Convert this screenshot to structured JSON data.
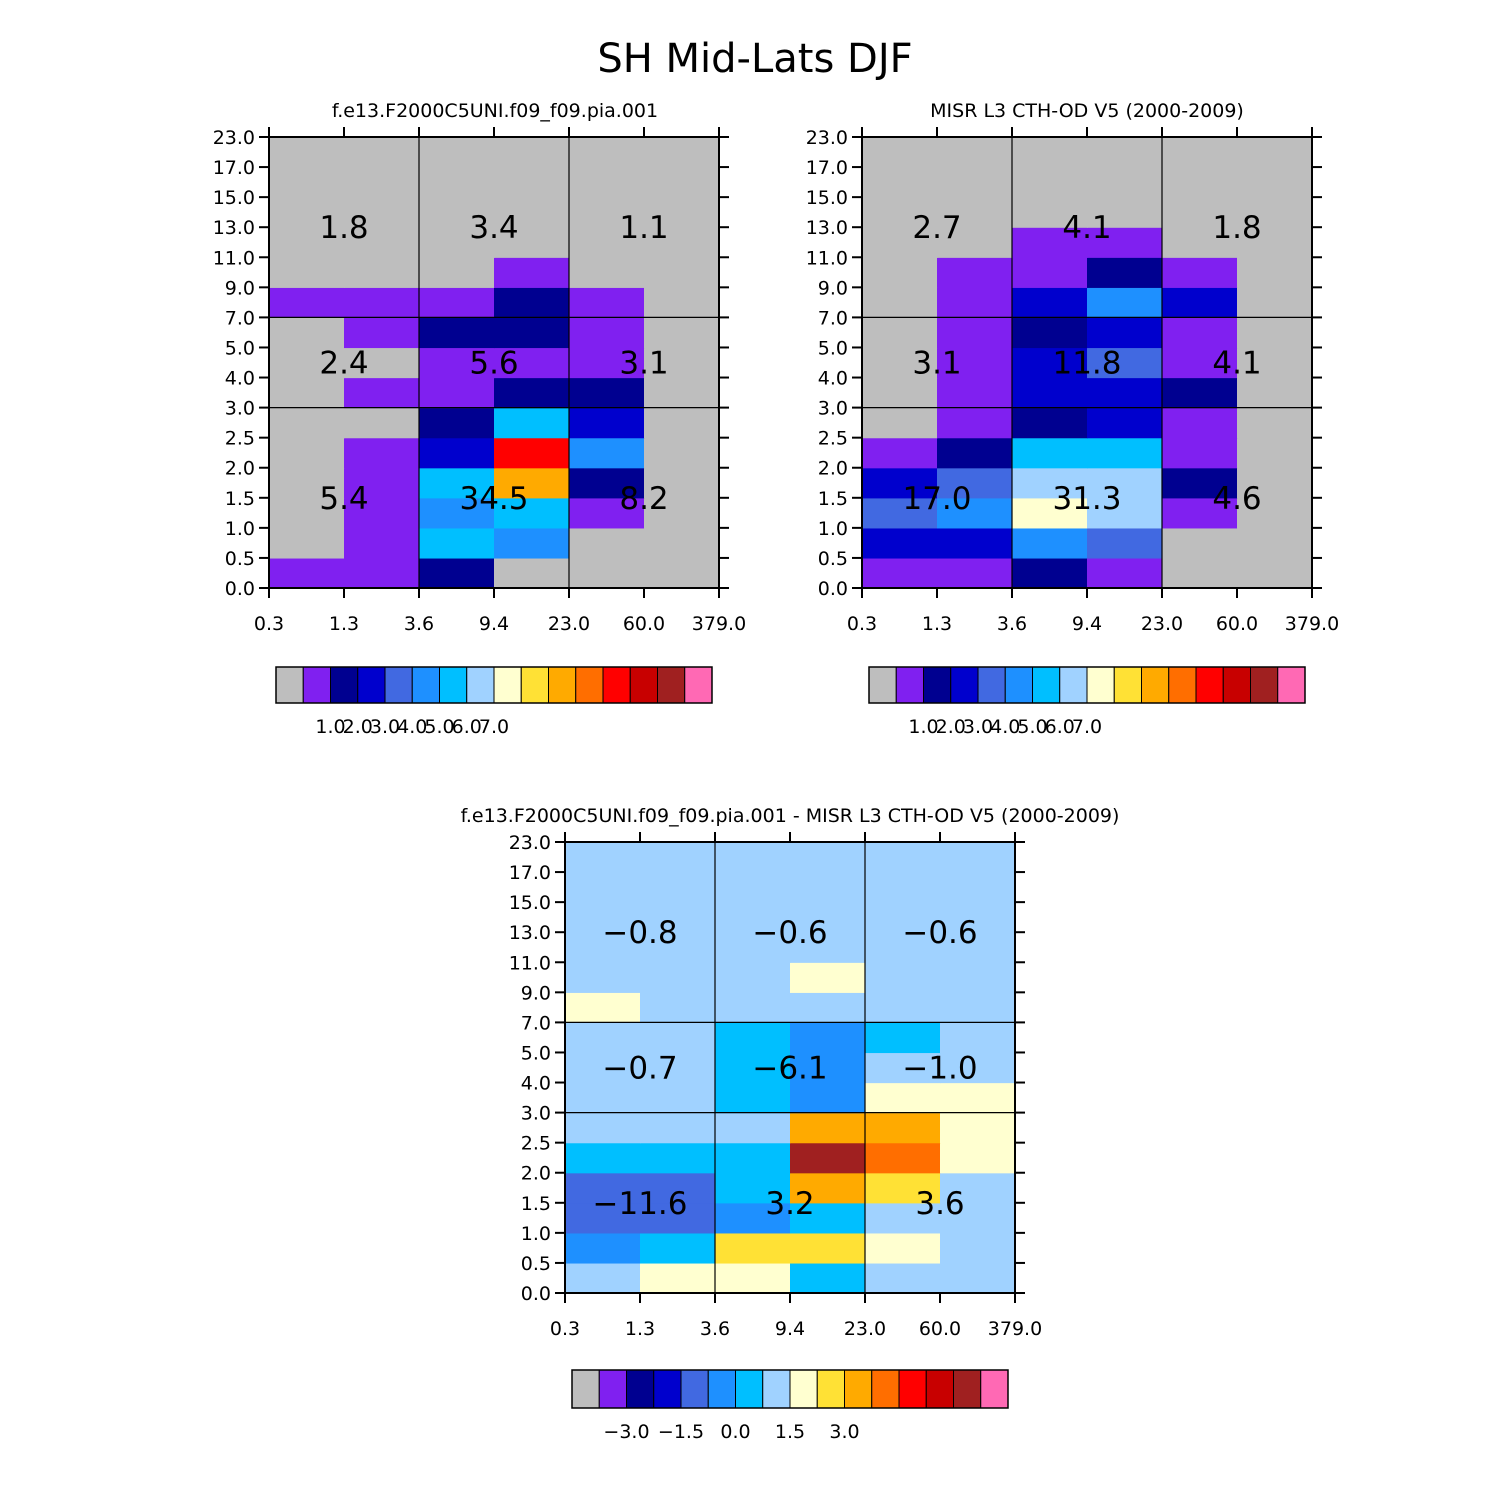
{
  "figure": {
    "title": "SH Mid-Lats DJF"
  },
  "palette": {
    "model": [
      "#bebebe",
      "#8020f0",
      "#000090",
      "#0000cd",
      "#4169e1",
      "#1e90ff",
      "#00bfff",
      "#a0d2ff",
      "#ffffd0",
      "#ffe135",
      "#ffaa00",
      "#ff6e00",
      "#ff0000",
      "#c80000",
      "#a02020",
      "#ff69b4"
    ],
    "diff": [
      "#bebebe",
      "#8020f0",
      "#000090",
      "#0000cd",
      "#4169e1",
      "#1e90ff",
      "#00bfff",
      "#a0d2ff",
      "#ffffd0",
      "#ffe135",
      "#ffaa00",
      "#ff6e00",
      "#ff0000",
      "#c80000",
      "#a02020",
      "#ff69b4"
    ]
  },
  "chart_data": [
    {
      "id": "model",
      "type": "heatmap",
      "title": "f.e13.F2000C5UNI.f09_f09.pia.001",
      "x_ticks": [
        "0.3",
        "1.3",
        "3.6",
        "9.4",
        "23.0",
        "60.0",
        "379.0"
      ],
      "y_ticks": [
        "0.0",
        "0.5",
        "1.0",
        "1.5",
        "2.0",
        "2.5",
        "3.0",
        "4.0",
        "5.0",
        "7.0",
        "9.0",
        "11.0",
        "13.0",
        "15.0",
        "17.0",
        "23.0"
      ],
      "note": "grid rows listed from bottom (0.0-0.5 km) to top (17-23 km); values are colour-bin indices into palette.model",
      "grid": [
        [
          1,
          1,
          2,
          0,
          0,
          0
        ],
        [
          0,
          1,
          6,
          5,
          0,
          0
        ],
        [
          0,
          1,
          5,
          6,
          1,
          0
        ],
        [
          0,
          1,
          6,
          10,
          2,
          0
        ],
        [
          0,
          1,
          3,
          12,
          5,
          0
        ],
        [
          0,
          0,
          2,
          6,
          3,
          0
        ],
        [
          0,
          1,
          1,
          2,
          2,
          0
        ],
        [
          0,
          0,
          1,
          1,
          1,
          0
        ],
        [
          0,
          1,
          2,
          2,
          1,
          0
        ],
        [
          1,
          1,
          1,
          2,
          1,
          0
        ],
        [
          0,
          0,
          0,
          1,
          0,
          0
        ],
        [
          0,
          0,
          0,
          0,
          0,
          0
        ],
        [
          0,
          0,
          0,
          0,
          0,
          0
        ],
        [
          0,
          0,
          0,
          0,
          0,
          0
        ],
        [
          0,
          0,
          0,
          0,
          0,
          0
        ]
      ],
      "annotations": [
        {
          "label": "1.8",
          "col": 0,
          "row": 2
        },
        {
          "label": "3.4",
          "col": 1,
          "row": 2
        },
        {
          "label": "1.1",
          "col": 2,
          "row": 2
        },
        {
          "label": "2.4",
          "col": 0,
          "row": 1
        },
        {
          "label": "5.6",
          "col": 1,
          "row": 1
        },
        {
          "label": "3.1",
          "col": 2,
          "row": 1
        },
        {
          "label": "5.4",
          "col": 0,
          "row": 0
        },
        {
          "label": "34.5",
          "col": 1,
          "row": 0
        },
        {
          "label": "8.2",
          "col": 2,
          "row": 0
        }
      ],
      "colorbar": {
        "labels": [
          "1.0",
          "2.0",
          "3.0",
          "4.0",
          "5.0",
          "6.0",
          "7.0"
        ]
      }
    },
    {
      "id": "obs",
      "type": "heatmap",
      "title": "MISR L3 CTH-OD V5 (2000-2009)",
      "x_ticks": [
        "0.3",
        "1.3",
        "3.6",
        "9.4",
        "23.0",
        "60.0",
        "379.0"
      ],
      "y_ticks": [
        "0.0",
        "0.5",
        "1.0",
        "1.5",
        "2.0",
        "2.5",
        "3.0",
        "4.0",
        "5.0",
        "7.0",
        "9.0",
        "11.0",
        "13.0",
        "15.0",
        "17.0",
        "23.0"
      ],
      "note": "grid rows listed from bottom to top; values are colour-bin indices into palette.model",
      "grid": [
        [
          1,
          1,
          2,
          1,
          0,
          0
        ],
        [
          3,
          3,
          5,
          4,
          0,
          0
        ],
        [
          4,
          5,
          8,
          7,
          1,
          0
        ],
        [
          3,
          4,
          7,
          7,
          2,
          0
        ],
        [
          1,
          2,
          6,
          6,
          1,
          0
        ],
        [
          0,
          1,
          2,
          3,
          1,
          0
        ],
        [
          0,
          1,
          3,
          3,
          2,
          0
        ],
        [
          0,
          1,
          3,
          4,
          1,
          0
        ],
        [
          0,
          1,
          2,
          3,
          1,
          0
        ],
        [
          0,
          1,
          3,
          5,
          3,
          0
        ],
        [
          0,
          1,
          1,
          2,
          1,
          0
        ],
        [
          0,
          0,
          1,
          1,
          0,
          0
        ],
        [
          0,
          0,
          0,
          0,
          0,
          0
        ],
        [
          0,
          0,
          0,
          0,
          0,
          0
        ],
        [
          0,
          0,
          0,
          0,
          0,
          0
        ]
      ],
      "annotations": [
        {
          "label": "2.7",
          "col": 0,
          "row": 2
        },
        {
          "label": "4.1",
          "col": 1,
          "row": 2
        },
        {
          "label": "1.8",
          "col": 2,
          "row": 2
        },
        {
          "label": "3.1",
          "col": 0,
          "row": 1
        },
        {
          "label": "11.8",
          "col": 1,
          "row": 1
        },
        {
          "label": "4.1",
          "col": 2,
          "row": 1
        },
        {
          "label": "17.0",
          "col": 0,
          "row": 0
        },
        {
          "label": "31.3",
          "col": 1,
          "row": 0
        },
        {
          "label": "4.6",
          "col": 2,
          "row": 0
        }
      ],
      "colorbar": {
        "labels": [
          "1.0",
          "2.0",
          "3.0",
          "4.0",
          "5.0",
          "6.0",
          "7.0"
        ]
      }
    },
    {
      "id": "diff",
      "type": "heatmap",
      "title": "f.e13.F2000C5UNI.f09_f09.pia.001 - MISR L3 CTH-OD V5 (2000-2009)",
      "x_ticks": [
        "0.3",
        "1.3",
        "3.6",
        "9.4",
        "23.0",
        "60.0",
        "379.0"
      ],
      "y_ticks": [
        "0.0",
        "0.5",
        "1.0",
        "1.5",
        "2.0",
        "2.5",
        "3.0",
        "4.0",
        "5.0",
        "7.0",
        "9.0",
        "11.0",
        "13.0",
        "15.0",
        "17.0",
        "23.0"
      ],
      "note": "grid rows listed from bottom to top; values are colour-bin indices into palette.diff",
      "grid": [
        [
          7,
          8,
          8,
          6,
          7,
          7
        ],
        [
          5,
          6,
          9,
          9,
          8,
          7
        ],
        [
          4,
          4,
          5,
          6,
          7,
          7
        ],
        [
          4,
          4,
          6,
          10,
          9,
          7
        ],
        [
          6,
          6,
          6,
          14,
          11,
          8
        ],
        [
          7,
          7,
          7,
          10,
          10,
          8
        ],
        [
          7,
          7,
          6,
          5,
          8,
          8
        ],
        [
          7,
          7,
          6,
          5,
          7,
          7
        ],
        [
          7,
          7,
          6,
          5,
          6,
          7
        ],
        [
          8,
          7,
          7,
          7,
          7,
          7
        ],
        [
          7,
          7,
          7,
          8,
          7,
          7
        ],
        [
          7,
          7,
          7,
          7,
          7,
          7
        ],
        [
          7,
          7,
          7,
          7,
          7,
          7
        ],
        [
          7,
          7,
          7,
          7,
          7,
          7
        ],
        [
          7,
          7,
          7,
          7,
          7,
          7
        ]
      ],
      "annotations": [
        {
          "label": "−0.8",
          "col": 0,
          "row": 2
        },
        {
          "label": "−0.6",
          "col": 1,
          "row": 2
        },
        {
          "label": "−0.6",
          "col": 2,
          "row": 2
        },
        {
          "label": "−0.7",
          "col": 0,
          "row": 1
        },
        {
          "label": "−6.1",
          "col": 1,
          "row": 1
        },
        {
          "label": "−1.0",
          "col": 2,
          "row": 1
        },
        {
          "label": "−11.6",
          "col": 0,
          "row": 0
        },
        {
          "label": "3.2",
          "col": 1,
          "row": 0
        },
        {
          "label": "3.6",
          "col": 2,
          "row": 0
        }
      ],
      "colorbar": {
        "labels": [
          "−3.0",
          "−1.5",
          "0.0",
          "1.5",
          "3.0"
        ]
      }
    }
  ]
}
